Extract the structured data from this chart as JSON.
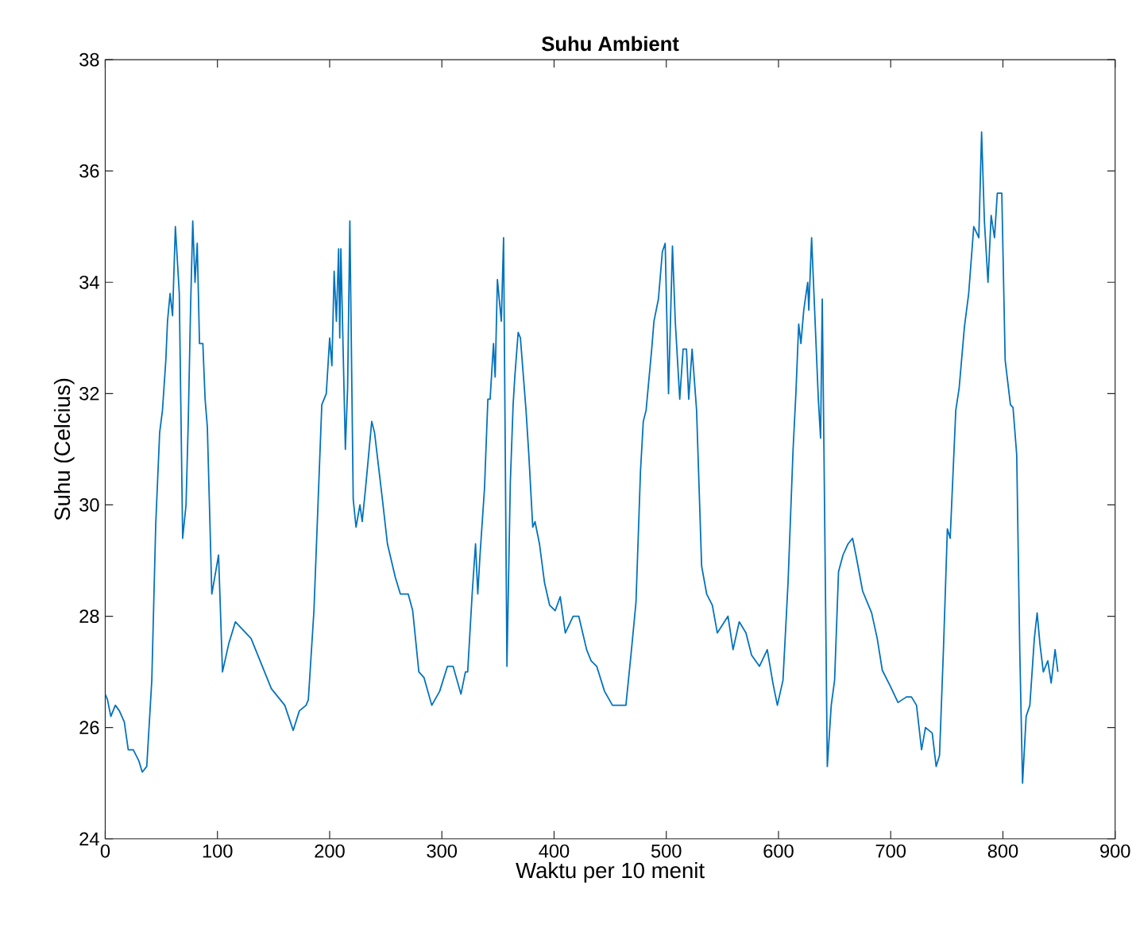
{
  "chart_data": {
    "type": "line",
    "title": "Suhu Ambient",
    "xlabel": "Waktu per 10 menit",
    "ylabel": "Suhu (Celcius)",
    "xlim": [
      0,
      900
    ],
    "ylim": [
      24,
      38
    ],
    "xticks": [
      0,
      100,
      200,
      300,
      400,
      500,
      600,
      700,
      800,
      900
    ],
    "yticks": [
      24,
      26,
      28,
      30,
      32,
      34,
      36,
      38
    ],
    "grid": false,
    "marker": "none",
    "line_style": "solid",
    "series": [
      {
        "color": "#0072bd",
        "x": [
          0,
          2,
          5,
          9,
          12.6,
          17,
          20.5,
          25,
          30,
          33,
          37,
          41.5,
          45,
          48.5,
          51,
          54,
          55.5,
          57.8,
          60,
          62.5,
          66,
          69,
          72,
          74,
          76,
          78,
          80,
          82,
          84,
          87,
          89,
          91,
          95,
          101,
          104.5,
          110,
          116,
          130,
          140,
          148,
          160,
          167.5,
          173,
          179,
          181,
          186,
          193,
          197,
          200,
          202,
          204,
          206,
          208,
          209,
          210,
          214,
          216,
          218,
          221,
          223.5,
          227,
          229,
          232,
          237.5,
          240,
          247,
          251.5,
          258.5,
          263,
          270,
          274,
          279.5,
          284,
          291,
          298,
          305,
          310,
          317,
          321,
          323,
          327,
          330,
          332,
          334,
          338,
          341,
          343,
          346,
          347.5,
          349.5,
          353,
          355,
          358,
          361,
          363.5,
          365,
          368,
          370,
          375,
          377.5,
          381,
          383,
          387,
          391.5,
          396,
          401,
          405.5,
          410,
          417,
          422,
          429,
          433,
          438,
          445,
          452,
          464,
          468.5,
          473,
          477,
          479.5,
          482,
          487,
          489,
          493,
          496.5,
          499,
          502,
          505.5,
          508,
          512,
          515,
          518,
          520,
          523,
          527,
          531.5,
          536,
          541,
          545.5,
          555,
          559.5,
          565,
          571,
          576,
          583,
          590,
          595,
          599,
          604,
          608.5,
          613,
          615.5,
          618,
          620,
          622.5,
          626,
          627,
          629.5,
          632,
          635.5,
          637.5,
          639,
          640.5,
          643.5,
          647,
          650,
          653.5,
          657.5,
          662,
          666,
          669,
          675,
          683,
          688,
          692.5,
          699.5,
          706.5,
          714,
          718.5,
          723,
          727.5,
          731,
          737,
          740.5,
          743.5,
          747,
          750.5,
          753,
          758,
          761,
          765.7,
          769.5,
          774,
          778.5,
          781,
          783.5,
          786.7,
          789.5,
          792.5,
          795,
          799,
          802,
          806.7,
          809,
          812.3,
          815,
          817.5,
          820.7,
          824,
          828,
          830.5,
          833,
          836,
          840,
          843,
          846.5,
          849
        ],
        "values": [
          26.6,
          26.5,
          26.2,
          26.4,
          26.3,
          26.1,
          25.6,
          25.6,
          25.4,
          25.2,
          25.3,
          26.85,
          29.65,
          31.3,
          31.7,
          32.6,
          33.3,
          33.8,
          33.4,
          35.0,
          33.8,
          29.4,
          30.0,
          31.5,
          33.5,
          35.1,
          34.0,
          34.7,
          32.9,
          32.9,
          31.9,
          31.4,
          28.4,
          29.1,
          27.0,
          27.5,
          27.9,
          27.6,
          27.1,
          26.7,
          26.4,
          25.95,
          26.3,
          26.4,
          26.5,
          28.1,
          31.8,
          32.0,
          33.0,
          32.5,
          34.2,
          33.3,
          34.6,
          33.0,
          34.6,
          31.0,
          32.1,
          35.1,
          30.1,
          29.6,
          30.0,
          29.7,
          30.3,
          31.5,
          31.3,
          30.1,
          29.3,
          28.7,
          28.4,
          28.4,
          28.1,
          27.0,
          26.9,
          26.4,
          26.65,
          27.1,
          27.1,
          26.6,
          27.0,
          27.0,
          28.4,
          29.3,
          28.4,
          29.1,
          30.3,
          31.9,
          31.9,
          32.9,
          32.3,
          34.05,
          33.3,
          34.8,
          27.1,
          30.4,
          31.8,
          32.3,
          33.1,
          33.0,
          31.7,
          30.9,
          29.6,
          29.7,
          29.3,
          28.6,
          28.2,
          28.1,
          28.35,
          27.7,
          28.0,
          28.0,
          27.4,
          27.2,
          27.1,
          26.65,
          26.4,
          26.4,
          27.3,
          28.25,
          30.6,
          31.5,
          31.7,
          32.8,
          33.3,
          33.7,
          34.55,
          34.7,
          32.0,
          34.65,
          33.3,
          31.9,
          32.8,
          32.8,
          31.9,
          32.8,
          31.7,
          28.9,
          28.4,
          28.2,
          27.7,
          28.0,
          27.4,
          27.9,
          27.7,
          27.3,
          27.1,
          27.4,
          26.8,
          26.4,
          26.85,
          28.6,
          31.0,
          32.0,
          33.25,
          32.9,
          33.5,
          34.0,
          33.5,
          34.8,
          33.6,
          31.9,
          31.2,
          33.7,
          31.0,
          25.3,
          26.4,
          26.85,
          28.8,
          29.1,
          29.3,
          29.4,
          29.1,
          28.45,
          28.06,
          27.6,
          27.03,
          26.75,
          26.45,
          26.55,
          26.55,
          26.4,
          25.6,
          26.0,
          25.9,
          25.3,
          25.5,
          27.4,
          29.57,
          29.4,
          31.7,
          32.1,
          33.2,
          33.8,
          35.0,
          34.8,
          36.7,
          35.1,
          34.0,
          35.2,
          34.8,
          35.6,
          35.6,
          32.6,
          31.8,
          31.75,
          30.9,
          27.4,
          25.0,
          26.2,
          26.4,
          27.6,
          28.06,
          27.5,
          27.0,
          27.2,
          26.8,
          27.4,
          27.0
        ]
      }
    ]
  }
}
